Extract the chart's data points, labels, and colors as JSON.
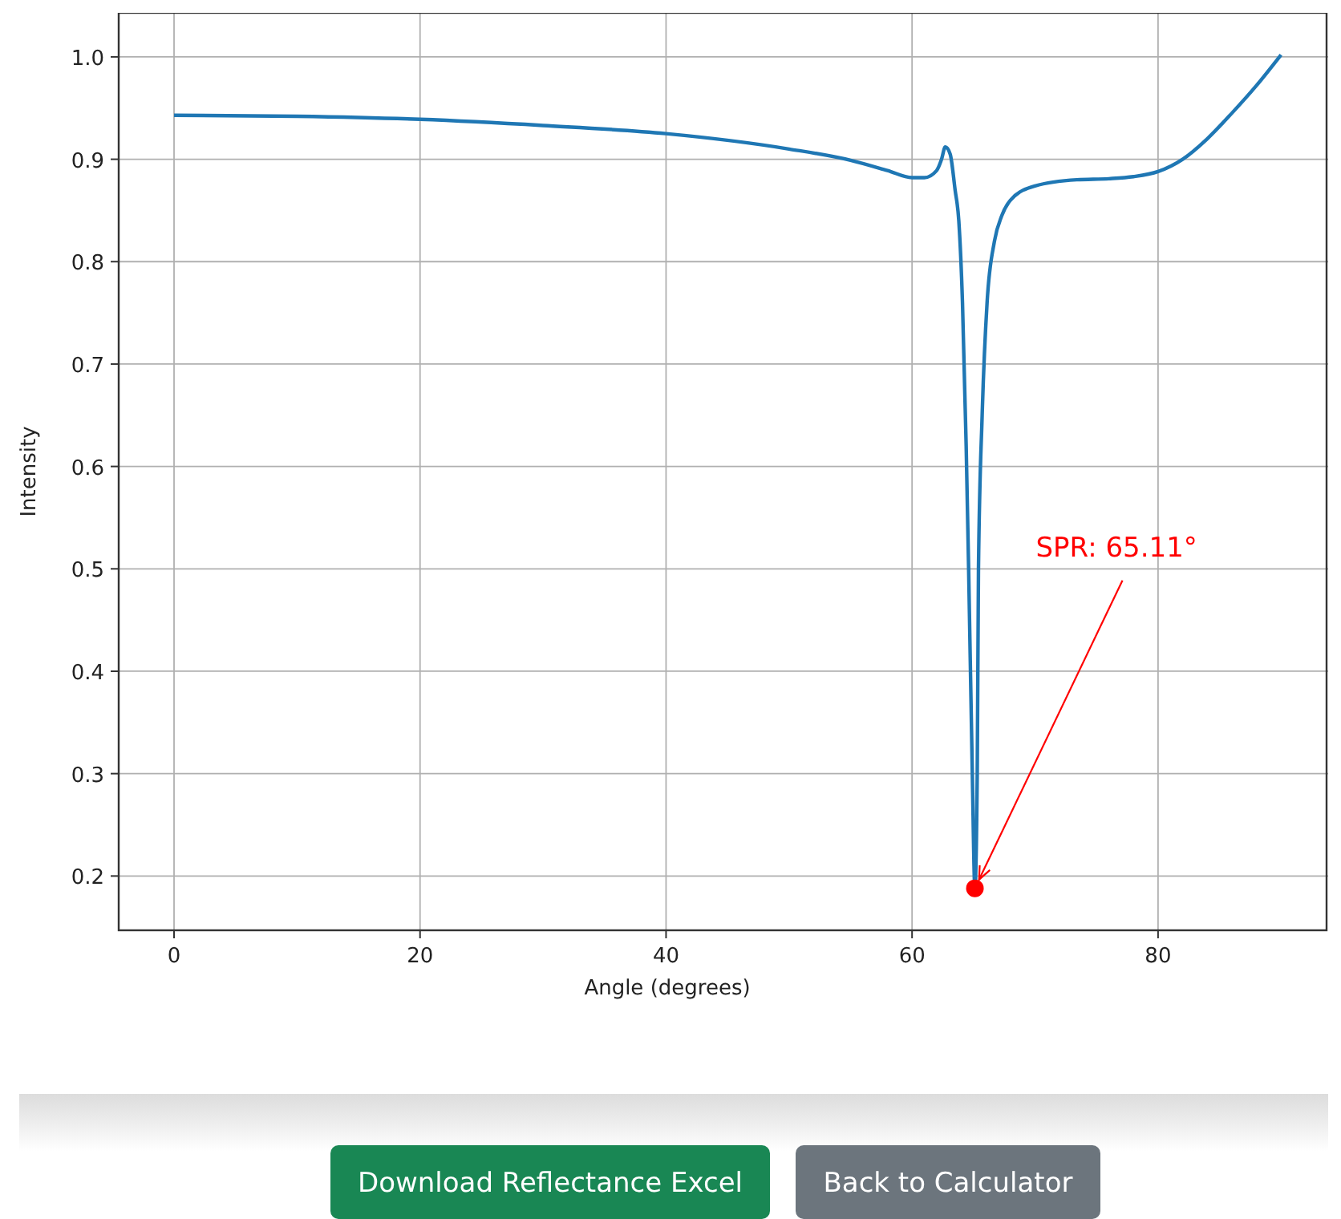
{
  "chart_data": {
    "type": "line",
    "xlabel": "Angle (degrees)",
    "ylabel": "Intensity",
    "xlim": [
      -4.5,
      93.7
    ],
    "ylim": [
      0.147,
      1.043
    ],
    "xticks": [
      0,
      20,
      40,
      60,
      80
    ],
    "yticks": [
      {
        "value": 0.2,
        "label": "0.2"
      },
      {
        "value": 0.3,
        "label": "0.3"
      },
      {
        "value": 0.4,
        "label": "0.4"
      },
      {
        "value": 0.5,
        "label": "0.5"
      },
      {
        "value": 0.6,
        "label": "0.6"
      },
      {
        "value": 0.7,
        "label": "0.7"
      },
      {
        "value": 0.8,
        "label": "0.8"
      },
      {
        "value": 0.9,
        "label": "0.9"
      },
      {
        "value": 1.0,
        "label": "1.0"
      }
    ],
    "grid": true,
    "line_style": "solid",
    "marker": "none",
    "series": [
      {
        "color": "#1f77b4",
        "x": [
          0,
          10,
          20,
          30,
          40,
          50,
          55,
          58,
          60,
          61,
          62,
          62.4,
          62.7,
          63.1,
          63.5,
          63.8,
          64.1,
          64.4,
          64.6,
          64.9,
          65.11,
          65.3,
          65.4,
          65.7,
          66.1,
          66.7,
          67.3,
          68,
          70,
          73.4,
          76,
          78,
          80,
          82,
          84,
          86,
          88,
          90
        ],
        "values": [
          0.943,
          0.942,
          0.939,
          0.933,
          0.925,
          0.91,
          0.899,
          0.889,
          0.882,
          0.882,
          0.889,
          0.9,
          0.912,
          0.905,
          0.87,
          0.84,
          0.76,
          0.62,
          0.5,
          0.3,
          0.188,
          0.3,
          0.5,
          0.65,
          0.76,
          0.82,
          0.845,
          0.86,
          0.874,
          0.88,
          0.881,
          0.883,
          0.888,
          0.9,
          0.92,
          0.945,
          0.972,
          1.002
        ]
      },
      {
        "type": "scatter",
        "marker": "circle",
        "color": "#ff0000",
        "x": [
          65.11
        ],
        "values": [
          0.188
        ]
      }
    ],
    "annotations": [
      {
        "text": "SPR: 65.11°",
        "x": 65.11,
        "y": 0.188
      },
      "Download Reflectance Excel",
      "Back to Calculator"
    ]
  }
}
